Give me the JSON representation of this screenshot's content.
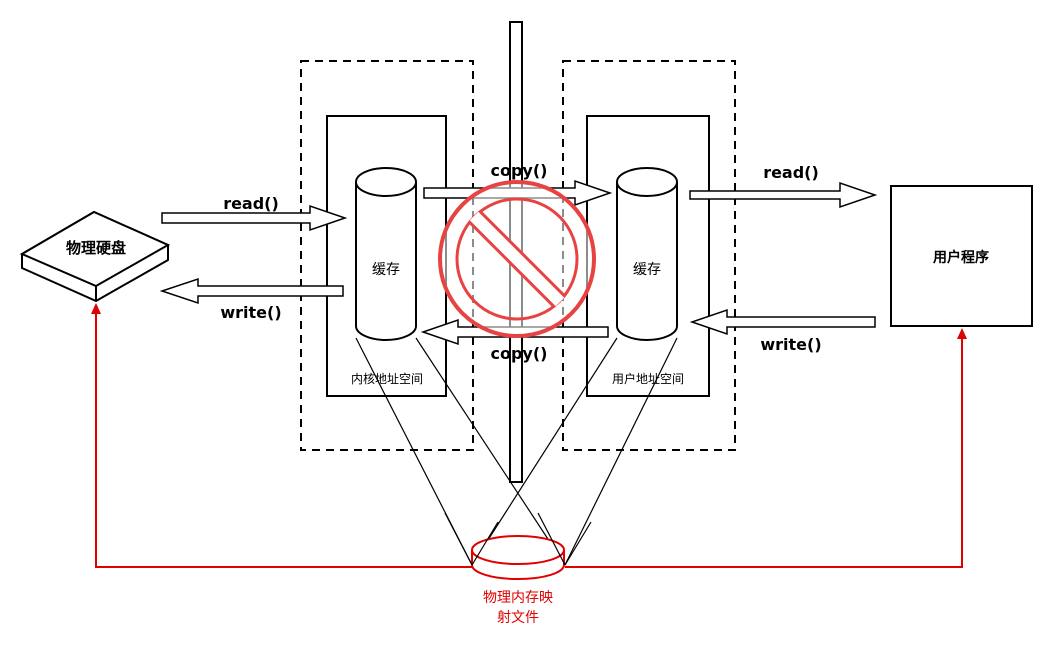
{
  "disk": {
    "label": "物理硬盘"
  },
  "kernel": {
    "cache_label": "缓存",
    "space_label": "内核地址空间"
  },
  "user_space": {
    "cache_label": "缓存",
    "space_label": "用户地址空间"
  },
  "program": {
    "label": "用户程序"
  },
  "arrows": {
    "read_disk": "read()",
    "write_disk": "write()",
    "copy_top": "copy()",
    "copy_bottom": "copy()",
    "read_user": "read()",
    "write_user": "write()"
  },
  "mmap": {
    "label_line1": "物理内存映",
    "label_line2": "射文件"
  },
  "colors": {
    "mmap": "#e00000",
    "prohibit": "#e84343",
    "stroke": "#000000"
  }
}
